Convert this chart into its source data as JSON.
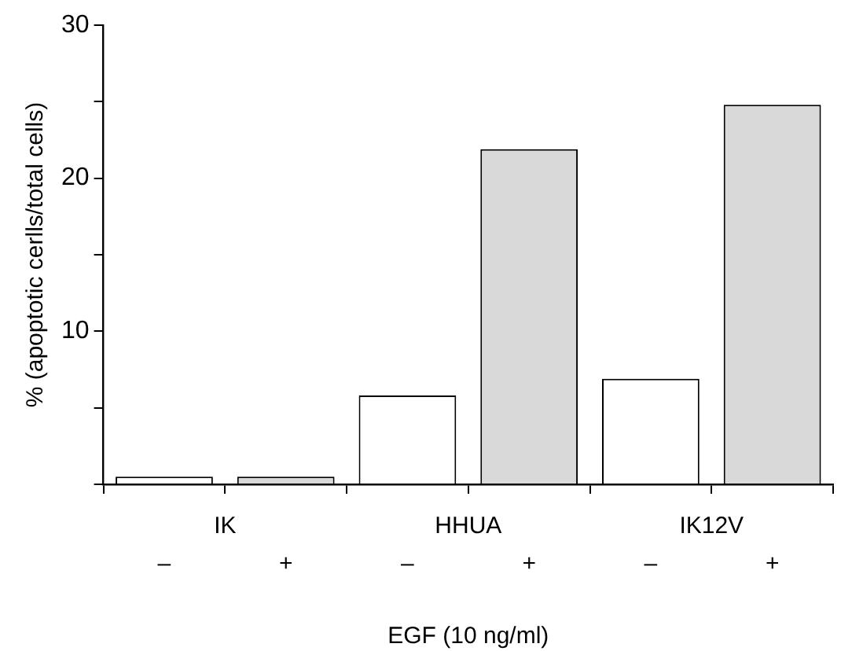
{
  "chart_data": {
    "type": "bar",
    "ylabel": "% (apoptotic cerlls/total cells)",
    "xlabel": "EGF (10 ng/ml)",
    "categories": [
      "–",
      "+",
      "–",
      "+",
      "–",
      "+"
    ],
    "values": [
      0.5,
      0.5,
      5.8,
      21.9,
      6.9,
      24.8
    ],
    "colors": [
      "#ffffff",
      "#d9d9d9",
      "#ffffff",
      "#d9d9d9",
      "#ffffff",
      "#d9d9d9"
    ],
    "ylim": [
      0,
      30
    ],
    "yticks": [
      {
        "value": 0,
        "label": null
      },
      {
        "value": 5,
        "label": null
      },
      10,
      {
        "value": 15,
        "label": null
      },
      20,
      {
        "value": 25,
        "label": null
      },
      30
    ],
    "annotations": [
      "IK",
      "HHUA",
      "IK12V"
    ],
    "grid": false,
    "legend": false
  }
}
